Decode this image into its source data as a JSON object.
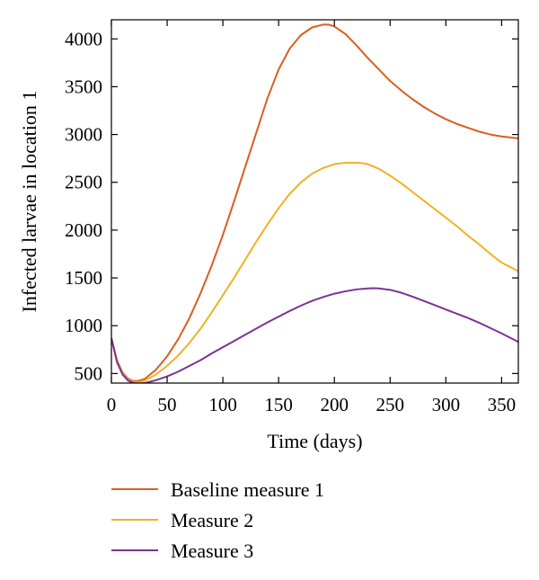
{
  "chart_data": {
    "type": "line",
    "title": "",
    "xlabel": "Time (days)",
    "ylabel": "Infected larvae in location 1",
    "xlim": [
      0,
      365
    ],
    "ylim": [
      400,
      4200
    ],
    "xticks": [
      0,
      50,
      100,
      150,
      200,
      250,
      300,
      350
    ],
    "yticks": [
      500,
      1000,
      1500,
      2000,
      2500,
      3000,
      3500,
      4000
    ],
    "grid": false,
    "legend_position": "bottom",
    "series": [
      {
        "name": "Baseline measure 1",
        "color": "#d95f1e",
        "x": [
          0,
          5,
          10,
          15,
          20,
          25,
          30,
          40,
          50,
          60,
          70,
          80,
          90,
          100,
          110,
          120,
          130,
          140,
          150,
          160,
          170,
          180,
          190,
          195,
          200,
          210,
          220,
          230,
          240,
          250,
          260,
          270,
          280,
          290,
          300,
          310,
          320,
          330,
          340,
          350,
          365
        ],
        "y": [
          870,
          640,
          510,
          445,
          420,
          425,
          445,
          540,
          680,
          860,
          1080,
          1340,
          1630,
          1950,
          2300,
          2660,
          3020,
          3380,
          3680,
          3900,
          4040,
          4120,
          4150,
          4150,
          4130,
          4050,
          3930,
          3800,
          3680,
          3560,
          3460,
          3370,
          3290,
          3220,
          3160,
          3110,
          3070,
          3030,
          3000,
          2980,
          2960
        ]
      },
      {
        "name": "Measure 2",
        "color": "#f2b124",
        "x": [
          0,
          5,
          10,
          15,
          20,
          25,
          30,
          40,
          50,
          60,
          70,
          80,
          90,
          100,
          110,
          120,
          130,
          140,
          150,
          160,
          170,
          180,
          190,
          200,
          210,
          220,
          225,
          230,
          240,
          250,
          260,
          270,
          280,
          290,
          300,
          310,
          320,
          330,
          340,
          350,
          365
        ],
        "y": [
          870,
          630,
          500,
          435,
          410,
          410,
          425,
          490,
          580,
          690,
          820,
          970,
          1140,
          1320,
          1500,
          1690,
          1880,
          2060,
          2230,
          2380,
          2500,
          2590,
          2650,
          2690,
          2705,
          2705,
          2700,
          2690,
          2640,
          2570,
          2490,
          2400,
          2310,
          2220,
          2130,
          2040,
          1940,
          1850,
          1750,
          1660,
          1570
        ]
      },
      {
        "name": "Measure 3",
        "color": "#7b3294",
        "x": [
          0,
          5,
          10,
          15,
          20,
          25,
          30,
          40,
          50,
          60,
          70,
          80,
          90,
          100,
          110,
          120,
          130,
          140,
          150,
          160,
          170,
          180,
          190,
          200,
          210,
          220,
          230,
          235,
          240,
          250,
          260,
          270,
          280,
          290,
          300,
          310,
          320,
          330,
          340,
          350,
          365
        ],
        "y": [
          870,
          620,
          490,
          425,
          400,
          395,
          400,
          430,
          470,
          520,
          580,
          640,
          710,
          775,
          840,
          905,
          970,
          1035,
          1095,
          1155,
          1210,
          1260,
          1300,
          1335,
          1360,
          1380,
          1390,
          1392,
          1390,
          1375,
          1345,
          1305,
          1260,
          1215,
          1170,
          1125,
          1080,
          1030,
          975,
          920,
          830
        ]
      }
    ]
  }
}
